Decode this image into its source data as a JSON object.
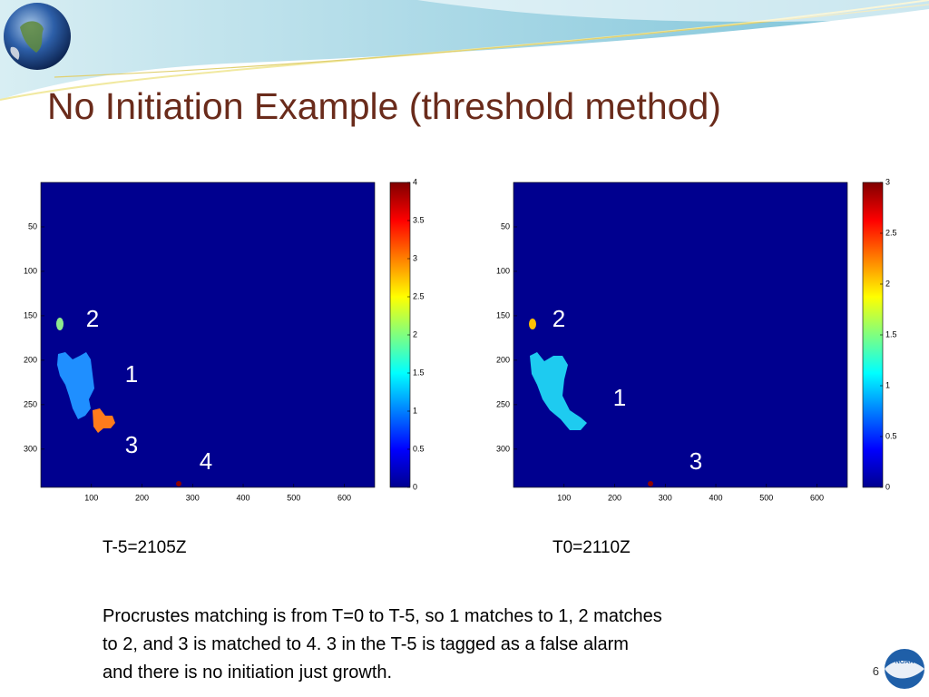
{
  "title": "No Initiation Example (threshold method)",
  "panels": [
    {
      "xlim": [
        0,
        660
      ],
      "ylim": [
        0,
        343
      ],
      "xticks": [
        100,
        200,
        300,
        400,
        500,
        600
      ],
      "yticks": [
        50,
        100,
        150,
        200,
        250,
        300
      ],
      "clim": [
        0,
        4
      ],
      "cticks": [
        0,
        0.5,
        1,
        1.5,
        2,
        2.5,
        3,
        3.5,
        4
      ],
      "labels": [
        "2",
        "1",
        "3",
        "4"
      ],
      "caption": "T-5=2105Z"
    },
    {
      "xlim": [
        0,
        660
      ],
      "ylim": [
        0,
        343
      ],
      "xticks": [
        100,
        200,
        300,
        400,
        500,
        600
      ],
      "yticks": [
        50,
        100,
        150,
        200,
        250,
        300
      ],
      "clim": [
        0,
        3
      ],
      "cticks": [
        0,
        0.5,
        1,
        1.5,
        2,
        2.5,
        3
      ],
      "labels": [
        "2",
        "1",
        "3"
      ],
      "caption": "T0=2110Z"
    }
  ],
  "body": [
    "Procrustes matching is from T=0 to T-5, so 1 matches to 1, 2 matches",
    "to 2, and 3 is matched to 4.  3 in the T-5 is tagged as a false alarm",
    "and there is no initiation just growth."
  ],
  "page_number": "6"
}
